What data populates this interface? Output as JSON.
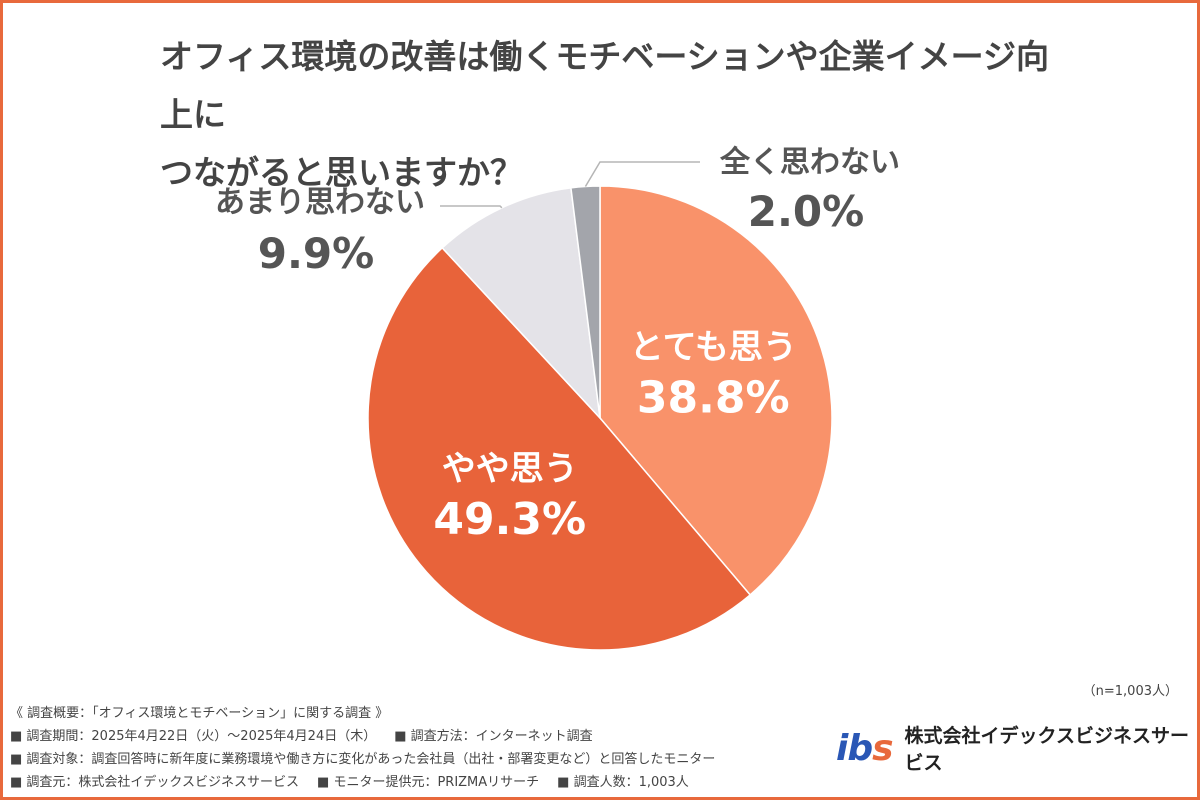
{
  "title_line1": "オフィス環境の改善は働くモチベーションや企業イメージ向上に",
  "title_line2": "つながると思いますか？",
  "colors": {
    "frame": "#e8693c",
    "slice_1": "#f9926a",
    "slice_2": "#e8633a",
    "slice_3": "#e4e3e8",
    "slice_4": "#a3a5ab",
    "label_dark": "#555555",
    "label_light": "#ffffff"
  },
  "chart_data": {
    "type": "pie",
    "start_angle_deg": 0,
    "direction": "clockwise",
    "slices": [
      {
        "label": "とても思う",
        "value": 38.8,
        "display": "38.8%"
      },
      {
        "label": "やや思う",
        "value": 49.3,
        "display": "49.3%"
      },
      {
        "label": "あまり思わない",
        "value": 9.9,
        "display": "9.9%"
      },
      {
        "label": "全く思わない",
        "value": 2.0,
        "display": "2.0%"
      }
    ]
  },
  "sample_note": "（n=1,003人）",
  "footer": {
    "heading": "《 調査概要：「オフィス環境とモチベーション」に関する調査 》",
    "period": "■ 調査期間：2025年4月22日（火）〜2025年4月24日（木）",
    "method": "■ 調査方法：インターネット調査",
    "target": "■ 調査対象：調査回答時に新年度に業務環境や働き方に変化があった会社員（出社・部署変更など）と回答したモニター",
    "organizer": "■ 調査元：株式会社イデックスビジネスサービス",
    "provider": "■ モニター提供元：PRIZMAリサーチ",
    "count": "■ 調査人数：1,003人"
  },
  "logo": {
    "mark_main": "ib",
    "mark_accent": "s",
    "company": "株式会社イデックスビジネスサービス"
  }
}
